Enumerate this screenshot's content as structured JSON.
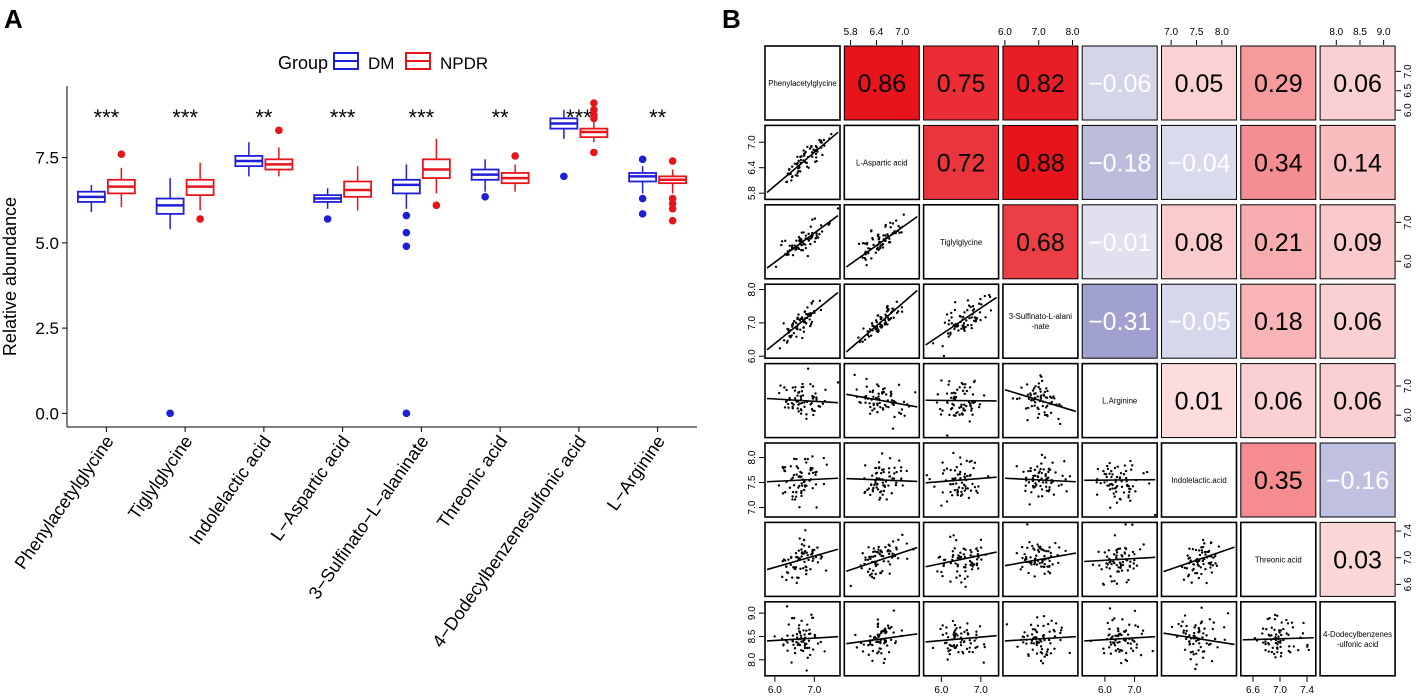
{
  "panel_labels": {
    "a": "A",
    "b": "B"
  },
  "colors": {
    "dm": "#1f1fd6",
    "npdr": "#e8141c",
    "pos_strong": "#e8141c",
    "neg_strong": "#2e2f96",
    "text": "#000000"
  },
  "legend": {
    "title": "Group",
    "dm_label": "DM",
    "npdr_label": "NPDR"
  },
  "chart_data": [
    {
      "type": "box",
      "panel": "A",
      "ylabel": "Relative abundance",
      "ylim": [
        -0.4,
        9.6
      ],
      "yticks": [
        0.0,
        2.5,
        5.0,
        7.5
      ],
      "ytick_labels": [
        "0.0",
        "2.5",
        "5.0",
        "7.5"
      ],
      "categories": [
        "Phenylacetylglycine",
        "Tiglylglycine",
        "Indolelactic acid",
        "L−Aspartic acid",
        "3−Sulfinato−L−alaninate",
        "Threonic acid",
        "4−Dodecylbenzenesulfonic acid",
        "L−Arginine"
      ],
      "significance": [
        "***",
        "***",
        "**",
        "***",
        "***",
        "**",
        "***",
        "**"
      ],
      "series": [
        {
          "name": "DM",
          "boxes": [
            {
              "min": 5.9,
              "q1": 6.2,
              "median": 6.35,
              "q3": 6.5,
              "max": 6.7,
              "outliers": []
            },
            {
              "min": 5.4,
              "q1": 5.85,
              "median": 6.1,
              "q3": 6.3,
              "max": 6.9,
              "outliers": [
                0.0
              ]
            },
            {
              "min": 6.95,
              "q1": 7.25,
              "median": 7.4,
              "q3": 7.55,
              "max": 7.95,
              "outliers": []
            },
            {
              "min": 6.0,
              "q1": 6.2,
              "median": 6.3,
              "q3": 6.4,
              "max": 6.6,
              "outliers": [
                5.7
              ]
            },
            {
              "min": 6.0,
              "q1": 6.45,
              "median": 6.7,
              "q3": 6.85,
              "max": 7.3,
              "outliers": [
                5.8,
                5.3,
                4.9,
                0.0
              ]
            },
            {
              "min": 6.5,
              "q1": 6.85,
              "median": 7.0,
              "q3": 7.15,
              "max": 7.45,
              "outliers": [
                6.35
              ]
            },
            {
              "min": 8.05,
              "q1": 8.35,
              "median": 8.5,
              "q3": 8.65,
              "max": 8.9,
              "outliers": [
                6.95
              ]
            },
            {
              "min": 6.45,
              "q1": 6.8,
              "median": 6.95,
              "q3": 7.05,
              "max": 7.25,
              "outliers": [
                7.45,
                6.3,
                5.85
              ]
            }
          ]
        },
        {
          "name": "NPDR",
          "boxes": [
            {
              "min": 6.05,
              "q1": 6.45,
              "median": 6.65,
              "q3": 6.85,
              "max": 7.2,
              "outliers": [
                7.6
              ]
            },
            {
              "min": 5.95,
              "q1": 6.4,
              "median": 6.65,
              "q3": 6.85,
              "max": 7.35,
              "outliers": [
                5.7
              ]
            },
            {
              "min": 6.95,
              "q1": 7.15,
              "median": 7.3,
              "q3": 7.45,
              "max": 7.8,
              "outliers": [
                8.3
              ]
            },
            {
              "min": 5.95,
              "q1": 6.35,
              "median": 6.55,
              "q3": 6.8,
              "max": 7.25,
              "outliers": []
            },
            {
              "min": 6.45,
              "q1": 6.9,
              "median": 7.15,
              "q3": 7.45,
              "max": 8.05,
              "outliers": [
                6.1
              ]
            },
            {
              "min": 6.5,
              "q1": 6.75,
              "median": 6.9,
              "q3": 7.05,
              "max": 7.3,
              "outliers": [
                7.55
              ]
            },
            {
              "min": 7.95,
              "q1": 8.1,
              "median": 8.25,
              "q3": 8.35,
              "max": 8.55,
              "outliers": [
                9.1,
                8.9,
                8.75,
                8.65,
                7.65
              ]
            },
            {
              "min": 6.45,
              "q1": 6.75,
              "median": 6.85,
              "q3": 6.95,
              "max": 7.15,
              "outliers": [
                7.4,
                6.3,
                6.15,
                6.0,
                5.65
              ]
            }
          ]
        }
      ]
    },
    {
      "type": "heatmap",
      "panel": "B",
      "variables": [
        "Phenylacetylglycine",
        "L-Aspartic acid",
        "Tiglylglycine",
        "3-Sulfinato-L-alani -nate",
        "L.Arginine",
        "Indolelactic.acid",
        "Threonic acid",
        "4-Dodecylbenzenes -ulfonic acid"
      ],
      "correlations": [
        [
          1,
          0.86,
          0.75,
          0.82,
          -0.06,
          0.05,
          0.29,
          0.06
        ],
        [
          0.86,
          1,
          0.72,
          0.88,
          -0.18,
          -0.04,
          0.34,
          0.14
        ],
        [
          0.75,
          0.72,
          1,
          0.68,
          -0.01,
          0.08,
          0.21,
          0.09
        ],
        [
          0.82,
          0.88,
          0.68,
          1,
          -0.31,
          -0.05,
          0.18,
          0.06
        ],
        [
          -0.06,
          -0.18,
          -0.01,
          -0.31,
          1,
          0.01,
          0.06,
          0.06
        ],
        [
          0.05,
          -0.04,
          0.08,
          -0.05,
          0.01,
          1,
          0.35,
          -0.16
        ],
        [
          0.29,
          0.34,
          0.21,
          0.18,
          0.06,
          0.35,
          1,
          0.03
        ],
        [
          0.06,
          0.14,
          0.09,
          0.06,
          0.06,
          -0.16,
          0.03,
          1
        ]
      ],
      "correlation_labels": [
        [
          "",
          "0.86",
          "0.75",
          "0.82",
          "−0.06",
          "0.05",
          "0.29",
          "0.06"
        ],
        [
          "",
          "",
          "0.72",
          "0.88",
          "−0.18",
          "−0.04",
          "0.34",
          "0.14"
        ],
        [
          "",
          "",
          "",
          "0.68",
          "−0.01",
          "0.08",
          "0.21",
          "0.09"
        ],
        [
          "",
          "",
          "",
          "",
          "−0.31",
          "−0.05",
          "0.18",
          "0.06"
        ],
        [
          "",
          "",
          "",
          "",
          "",
          "0.01",
          "0.06",
          "0.06"
        ],
        [
          "",
          "",
          "",
          "",
          "",
          "",
          "0.35",
          "−0.16"
        ],
        [
          "",
          "",
          "",
          "",
          "",
          "",
          "",
          "0.03"
        ],
        [
          "",
          "",
          "",
          "",
          "",
          "",
          "",
          ""
        ]
      ],
      "scatter_ranges": [
        [
          5.8,
          7.6
        ],
        [
          5.7,
          7.35
        ],
        [
          5.6,
          7.4
        ],
        [
          6.0,
          8.1
        ],
        [
          5.3,
          7.7
        ],
        [
          6.85,
          8.25
        ],
        [
          6.45,
          7.5
        ],
        [
          7.7,
          9.2
        ]
      ],
      "axis_ticks": {
        "top": [
          {
            "col": 1,
            "labels": [
              "5.8",
              "6.4",
              "7.0"
            ],
            "values": [
              5.8,
              6.4,
              7.0
            ]
          },
          {
            "col": 3,
            "labels": [
              "6.0",
              "7.0",
              "8.0"
            ],
            "values": [
              6.0,
              7.0,
              8.0
            ]
          },
          {
            "col": 5,
            "labels": [
              "7.0",
              "7.5",
              "8.0"
            ],
            "values": [
              7.0,
              7.5,
              8.0
            ]
          },
          {
            "col": 7,
            "labels": [
              "8.0",
              "8.5",
              "9.0"
            ],
            "values": [
              8.0,
              8.5,
              9.0
            ]
          }
        ],
        "bottom": [
          {
            "col": 0,
            "labels": [
              "6.0",
              "7.0"
            ],
            "values": [
              6.0,
              7.0
            ]
          },
          {
            "col": 2,
            "labels": [
              "6.0",
              "7.0"
            ],
            "values": [
              6.0,
              7.0
            ]
          },
          {
            "col": 4,
            "labels": [
              "6.0",
              "7.0"
            ],
            "values": [
              6.0,
              7.0
            ]
          },
          {
            "col": 6,
            "labels": [
              "6.6",
              "7.0",
              "7.4"
            ],
            "values": [
              6.6,
              7.0,
              7.4
            ]
          }
        ],
        "left": [
          {
            "row": 1,
            "labels": [
              "5.8",
              "6.4",
              "7.0"
            ],
            "values": [
              5.8,
              6.4,
              7.0
            ]
          },
          {
            "row": 3,
            "labels": [
              "6.0",
              "7.0",
              "8.0"
            ],
            "values": [
              6.0,
              7.0,
              8.0
            ]
          },
          {
            "row": 5,
            "labels": [
              "7.0",
              "7.5",
              "8.0"
            ],
            "values": [
              7.0,
              7.5,
              8.0
            ]
          },
          {
            "row": 7,
            "labels": [
              "8.0",
              "8.5",
              "9.0"
            ],
            "values": [
              8.0,
              8.5,
              9.0
            ]
          }
        ],
        "right": [
          {
            "row": 0,
            "labels": [
              "6.0",
              "6.5",
              "7.0"
            ],
            "values": [
              6.0,
              6.5,
              7.0
            ]
          },
          {
            "row": 2,
            "labels": [
              "6.0",
              "7.0"
            ],
            "values": [
              6.0,
              7.0
            ]
          },
          {
            "row": 4,
            "labels": [
              "6.0",
              "7.0"
            ],
            "values": [
              6.0,
              7.0
            ]
          },
          {
            "row": 6,
            "labels": [
              "6.6",
              "7.0",
              "7.4"
            ],
            "values": [
              6.6,
              7.0,
              7.4
            ]
          }
        ]
      }
    }
  ]
}
